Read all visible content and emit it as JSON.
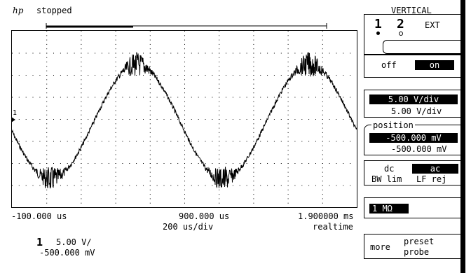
{
  "header": {
    "logo": "hp",
    "status": "stopped"
  },
  "timebase": {
    "left_time": "-100.000 us",
    "center_time": "900.000 us",
    "right_time": "1.900000 ms",
    "time_per_div": "200  us/div",
    "mode": "realtime"
  },
  "trace_marker": "1",
  "channel_summary": {
    "channel": "1",
    "scale": "5.00  V/",
    "offset": "-500.000 mV"
  },
  "vertical_menu": {
    "title": "VERTICAL",
    "channels": [
      "1",
      "2",
      "EXT"
    ],
    "selected_channel": "1",
    "off_label": "off",
    "on_label": "on",
    "vdiv_selected": "5.00  V/div",
    "vdiv_value": "5.00  V/div",
    "position_label": "position",
    "position_selected": "-500.000 mV",
    "position_value": "-500.000 mV",
    "coupling_dc": "dc",
    "coupling_ac": "ac",
    "bw_lim": "BW lim",
    "lf_rej": "LF rej",
    "impedance": "1 MΩ",
    "more_label": "more",
    "preset_label": "preset",
    "probe_label": "probe"
  },
  "waveform": {
    "cycles_on_screen": 2,
    "amplitude_divs": 2.6
  }
}
